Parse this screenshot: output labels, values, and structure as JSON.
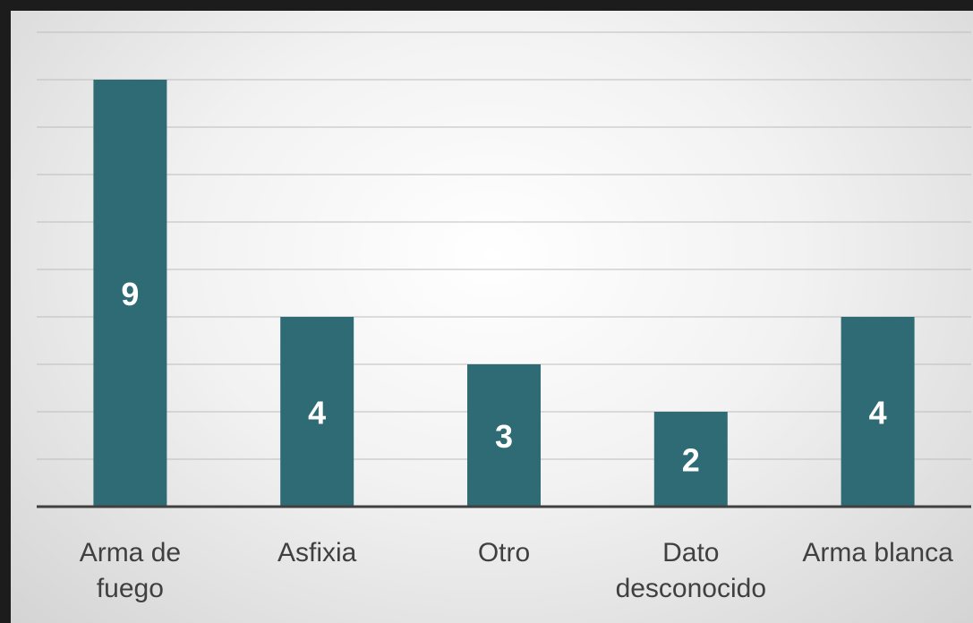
{
  "chart_data": {
    "type": "bar",
    "categories": [
      "Arma de fuego",
      "Asfixia",
      "Otro",
      "Dato desconocido",
      "Arma blanca"
    ],
    "values": [
      9,
      4,
      3,
      2,
      4
    ],
    "color": "#2e6b75",
    "ylim": [
      0,
      10
    ],
    "yticks": [
      0,
      1,
      2,
      3,
      4,
      5,
      6,
      7,
      8,
      9,
      10
    ],
    "grid": true
  }
}
